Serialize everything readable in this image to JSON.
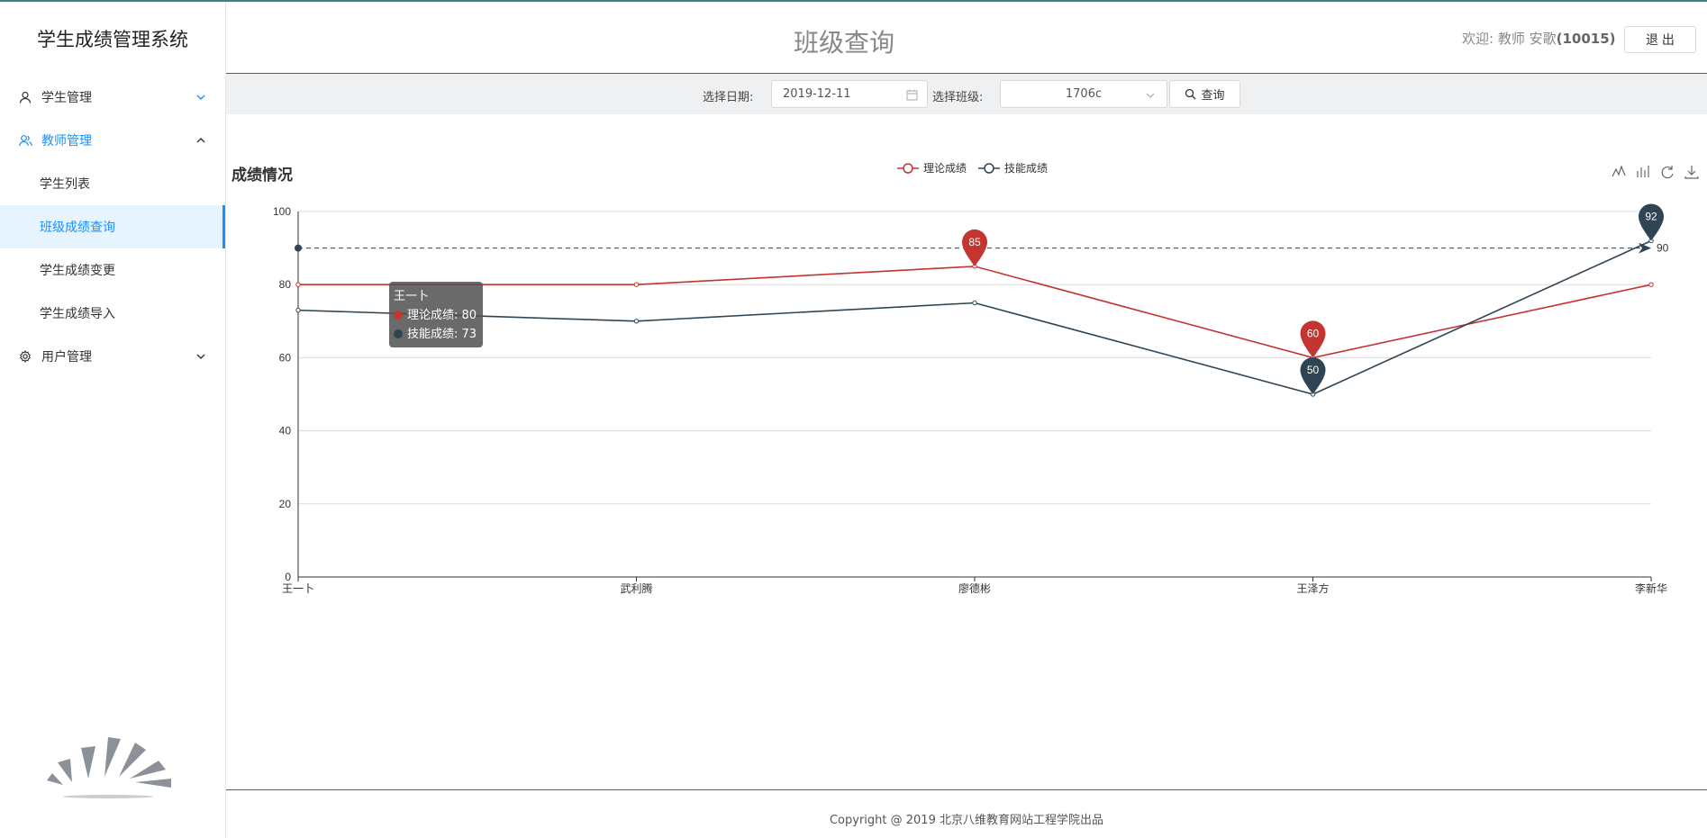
{
  "app": {
    "brand": "学生成绩管理系统"
  },
  "sidebar": {
    "items": [
      {
        "label": "学生管理",
        "icon": "user-icon",
        "open": false
      },
      {
        "label": "教师管理",
        "icon": "teacher-icon",
        "open": true,
        "children": [
          {
            "label": "学生列表",
            "active": false
          },
          {
            "label": "班级成绩查询",
            "active": true
          },
          {
            "label": "学生成绩变更",
            "active": false
          },
          {
            "label": "学生成绩导入",
            "active": false
          }
        ]
      },
      {
        "label": "用户管理",
        "icon": "gear-icon",
        "open": false
      }
    ]
  },
  "header": {
    "title": "班级查询",
    "welcome_prefix": "欢迎: 教师 安歌",
    "welcome_id": "(10015)",
    "logout_label": "退 出"
  },
  "filter": {
    "date_label": "选择日期:",
    "date_value": "2019-12-11",
    "class_label": "选择班级:",
    "class_value": "1706c",
    "query_label": "查询"
  },
  "chart_data": {
    "type": "line",
    "title": "成绩情况",
    "categories": [
      "王一卜",
      "武利腾",
      "廖德彬",
      "王泽方",
      "李新华"
    ],
    "series": [
      {
        "name": "理论成绩",
        "color": "#c23531",
        "values": [
          80,
          80,
          85,
          60,
          80
        ]
      },
      {
        "name": "技能成绩",
        "color": "#2f4554",
        "values": [
          73,
          70,
          75,
          50,
          92
        ]
      }
    ],
    "ylim": [
      0,
      100
    ],
    "yticks": [
      0,
      20,
      40,
      60,
      80,
      100
    ],
    "mark_points": [
      {
        "series": 0,
        "index": 2,
        "label": "85"
      },
      {
        "series": 0,
        "index": 3,
        "label": "60"
      },
      {
        "series": 1,
        "index": 3,
        "label": "50"
      },
      {
        "series": 1,
        "index": 4,
        "label": "92"
      }
    ],
    "mark_line": {
      "value": 90,
      "label": "90"
    },
    "tooltip": {
      "title": "王一卜",
      "rows": [
        "理论成绩: 80",
        "技能成绩: 73"
      ]
    },
    "legend_position": "top-center",
    "grid": true,
    "toolbox": [
      "line-chart-icon",
      "bar-chart-icon",
      "refresh-icon",
      "download-icon"
    ]
  },
  "footer": {
    "text": "Copyright @ 2019 北京八维教育网站工程学院出品"
  }
}
